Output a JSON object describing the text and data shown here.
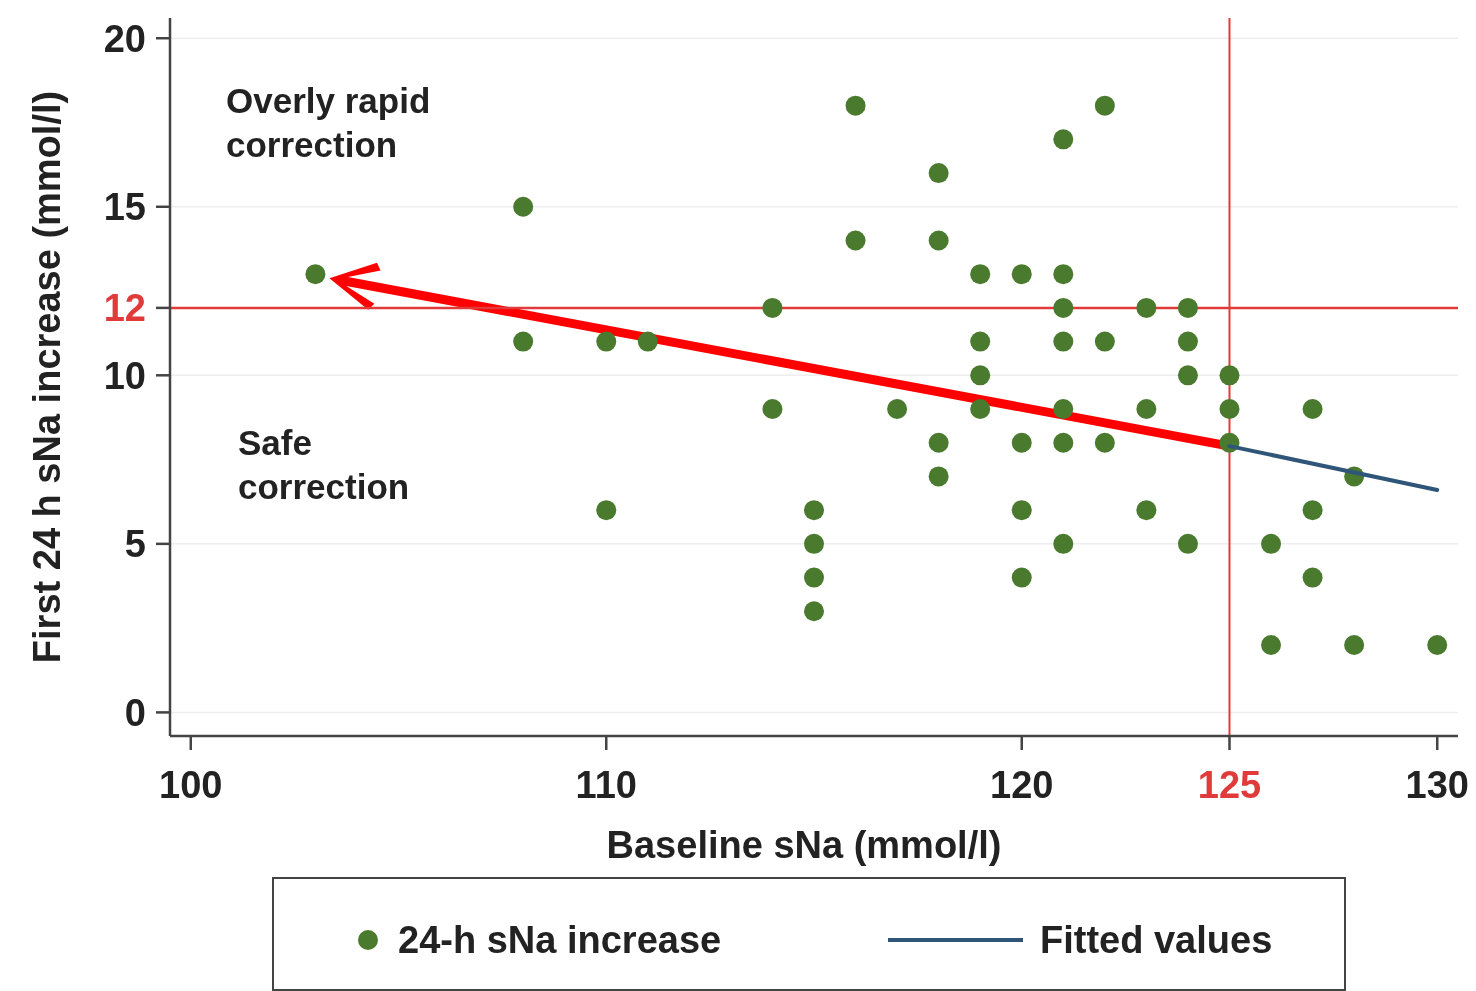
{
  "chart_data": {
    "type": "scatter",
    "xlabel": "Baseline sNa (mmol/l)",
    "ylabel": "First 24 h sNa increase (mmol/l)",
    "xlim": [
      99.5,
      130.5
    ],
    "ylim": [
      -0.7,
      20.6
    ],
    "xticks": [
      100,
      110,
      120,
      125,
      130
    ],
    "yticks": [
      0,
      5,
      10,
      12,
      15,
      20
    ],
    "grid": "y",
    "legend": "bottom",
    "series": [
      {
        "name": "24-h sNa increase",
        "type": "scatter",
        "marker": "circle",
        "color": "#4a7a2e",
        "x": [
          103,
          108,
          108,
          110,
          111,
          110,
          114,
          114,
          115,
          115,
          115,
          115,
          116,
          116,
          117,
          118,
          118,
          118,
          118,
          119,
          119,
          119,
          119,
          120,
          120,
          120,
          120,
          121,
          121,
          121,
          121,
          121,
          121,
          121,
          122,
          122,
          122,
          123,
          123,
          123,
          124,
          124,
          124,
          124,
          125,
          125,
          125,
          126,
          126,
          127,
          127,
          127,
          128,
          128,
          130
        ],
        "values": [
          13,
          15,
          11,
          11,
          11,
          6,
          12,
          9,
          6,
          5,
          4,
          3,
          18,
          14,
          9,
          16,
          14,
          8,
          7,
          13,
          11,
          10,
          9,
          13,
          8,
          6,
          4,
          17,
          13,
          12,
          11,
          9,
          8,
          5,
          18,
          11,
          8,
          12,
          9,
          6,
          12,
          11,
          10,
          5,
          10,
          9,
          8,
          5,
          2,
          9,
          6,
          4,
          7,
          2,
          2
        ]
      },
      {
        "name": "Fitted values",
        "type": "line",
        "color": "#2f5579",
        "x": [
          125,
          130
        ],
        "values": [
          7.9,
          6.6
        ]
      }
    ],
    "ref_lines": [
      {
        "axis": "y",
        "value": 12,
        "color": "#e03a3a"
      },
      {
        "axis": "x",
        "value": 125,
        "color": "#e03a3a"
      }
    ],
    "annotations": [
      {
        "text": "Overly rapid correction"
      },
      {
        "text": "Safe correction"
      }
    ]
  }
}
